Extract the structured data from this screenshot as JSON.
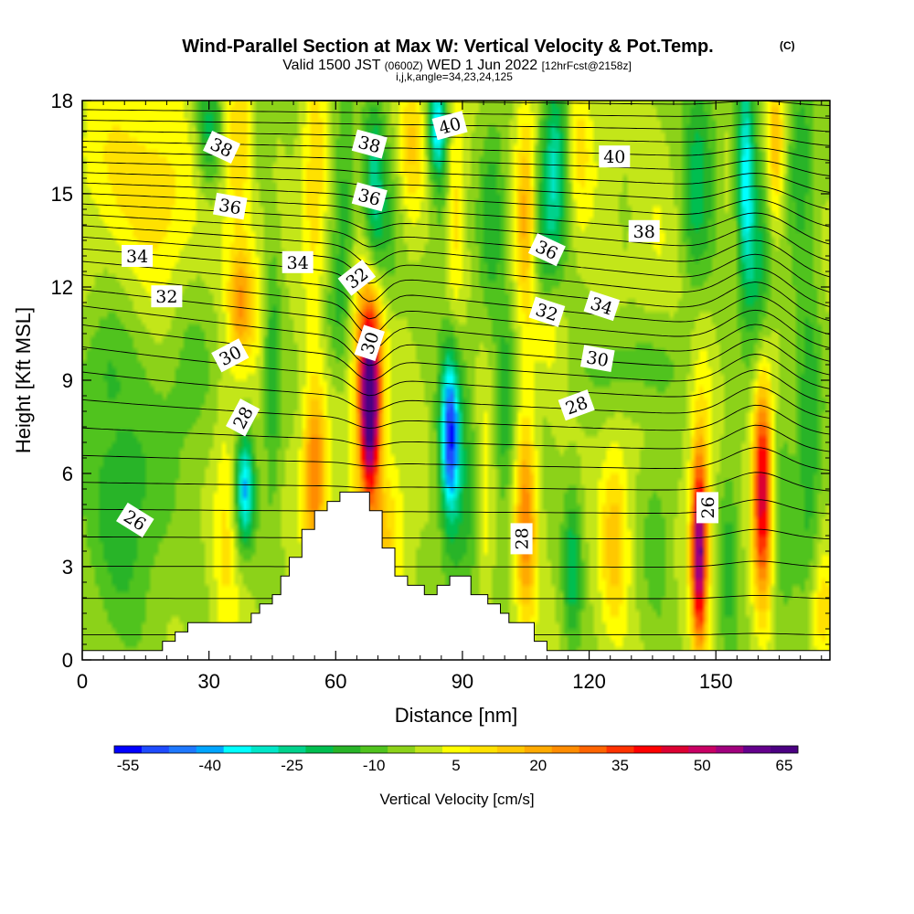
{
  "chart_data": {
    "type": "heatmap",
    "title": "Wind-Parallel Section at Max W: Vertical Velocity & Pot.Temp.",
    "title_mark": "(C)",
    "subtitle_valid": "Valid 1500 JST",
    "subtitle_utc": "(0600Z)",
    "subtitle_date": "WED 1 Jun 2022",
    "subtitle_fcst": "[12hrFcst@2158z]",
    "subtitle_index": "i,j,k,angle=34,23,24,125",
    "xlabel": "Distance [nm]",
    "ylabel": "Height [Kft MSL]",
    "xlim": [
      0,
      177
    ],
    "ylim": [
      0,
      18
    ],
    "xticks": [
      "0",
      "30",
      "60",
      "90",
      "120",
      "150"
    ],
    "xtick_values": [
      0,
      30,
      60,
      90,
      120,
      150
    ],
    "yticks": [
      "0",
      "3",
      "6",
      "9",
      "12",
      "15",
      "18"
    ],
    "ytick_values": [
      0,
      3,
      6,
      9,
      12,
      15,
      18
    ],
    "colorbar": {
      "label": "Vertical Velocity [cm/s]",
      "tick_labels": [
        "-55",
        "-40",
        "-25",
        "-10",
        "5",
        "20",
        "35",
        "50",
        "65"
      ],
      "tick_values": [
        -55,
        -40,
        -25,
        -10,
        5,
        20,
        35,
        50,
        65
      ],
      "min": -55,
      "max": 70,
      "step": 5,
      "colors": [
        "#0000ff",
        "#1e4bff",
        "#1e78ff",
        "#00a5ff",
        "#00ffff",
        "#00e6c8",
        "#00d28c",
        "#00be50",
        "#28b428",
        "#50c31e",
        "#8cd219",
        "#c3e619",
        "#ffff00",
        "#ffe100",
        "#ffc800",
        "#ffaa00",
        "#ff8c00",
        "#ff6400",
        "#ff3200",
        "#ff0000",
        "#dc0032",
        "#c80064",
        "#a0007d",
        "#64008c",
        "#4b0082"
      ]
    },
    "w_field": {
      "units": "cm/s",
      "background": 0,
      "cells": [
        {
          "x": 68,
          "z": 8.0,
          "sx": 2.3,
          "sz": 2.4,
          "w": 70
        },
        {
          "x": 68,
          "z": 10.5,
          "sx": 4,
          "sz": 2.5,
          "w": 30
        },
        {
          "x": 70,
          "z": 4,
          "sx": 6,
          "sz": 3,
          "w": 18
        },
        {
          "x": 55,
          "z": 6,
          "sx": 2.8,
          "sz": 2.8,
          "w": 32
        },
        {
          "x": 45,
          "z": 9,
          "sx": 2,
          "sz": 4,
          "w": -15
        },
        {
          "x": 38.5,
          "z": 5.5,
          "sx": 2.2,
          "sz": 1.8,
          "w": -35
        },
        {
          "x": 34,
          "z": 4,
          "sx": 3,
          "sz": 5,
          "w": 10
        },
        {
          "x": 87,
          "z": 7.3,
          "sx": 2.2,
          "sz": 2.6,
          "w": -45
        },
        {
          "x": 90,
          "z": 5,
          "sx": 5,
          "sz": 5,
          "w": -12
        },
        {
          "x": 95,
          "z": 5,
          "sx": 2.3,
          "sz": 4,
          "w": 12
        },
        {
          "x": 100,
          "z": 8,
          "sx": 2.3,
          "sz": 3,
          "w": -15
        },
        {
          "x": 105,
          "z": 4.5,
          "sx": 2.5,
          "sz": 3.5,
          "w": 28
        },
        {
          "x": 116,
          "z": 3.0,
          "sx": 2.2,
          "sz": 2.5,
          "w": -18
        },
        {
          "x": 126,
          "z": 4,
          "sx": 3.5,
          "sz": 3,
          "w": 18
        },
        {
          "x": 136,
          "z": 4,
          "sx": 3.5,
          "sz": 2.8,
          "w": -8
        },
        {
          "x": 146,
          "z": 3.5,
          "sx": 1.7,
          "sz": 2.8,
          "w": 55
        },
        {
          "x": 146.5,
          "z": 6,
          "sx": 3,
          "sz": 6,
          "w": 12
        },
        {
          "x": 153,
          "z": 3.2,
          "sx": 2.5,
          "sz": 3.5,
          "w": -12
        },
        {
          "x": 161,
          "z": 5.5,
          "sx": 2.2,
          "sz": 3.5,
          "w": 50
        },
        {
          "x": 166,
          "z": 4.5,
          "sx": 2.5,
          "sz": 4,
          "w": -8
        },
        {
          "x": 172,
          "z": 7,
          "sx": 3,
          "sz": 5,
          "w": -15
        },
        {
          "x": 175,
          "z": 1.5,
          "sx": 3,
          "sz": 2,
          "w": 15
        },
        {
          "x": 25,
          "z": 9,
          "sx": 6,
          "sz": 3,
          "w": -8
        },
        {
          "x": 10,
          "z": 5,
          "sx": 9,
          "sz": 4,
          "w": -14
        },
        {
          "x": 5,
          "z": 9.5,
          "sx": 6,
          "sz": 2,
          "w": -8
        },
        {
          "x": 10,
          "z": 16,
          "sx": 14,
          "sz": 3,
          "w": 10
        },
        {
          "x": 20,
          "z": 14,
          "sx": 8,
          "sz": 3,
          "w": 8
        },
        {
          "x": 30,
          "z": 17,
          "sx": 3,
          "sz": 2,
          "w": -18
        },
        {
          "x": 37,
          "z": 16.5,
          "sx": 4,
          "sz": 3,
          "w": 15
        },
        {
          "x": 42,
          "z": 17,
          "sx": 2.5,
          "sz": 2,
          "w": -8
        },
        {
          "x": 55,
          "z": 15.5,
          "sx": 3,
          "sz": 4,
          "w": 15
        },
        {
          "x": 40,
          "z": 11.5,
          "sx": 3.5,
          "sz": 2,
          "w": 12
        },
        {
          "x": 37,
          "z": 11.5,
          "sx": 2.5,
          "sz": 1.8,
          "w": 18
        },
        {
          "x": 62,
          "z": 15,
          "sx": 2.5,
          "sz": 4,
          "w": -12
        },
        {
          "x": 69,
          "z": 15,
          "sx": 2.5,
          "sz": 3,
          "w": -22
        },
        {
          "x": 72,
          "z": 13,
          "sx": 3,
          "sz": 3,
          "w": -10
        },
        {
          "x": 78,
          "z": 16.5,
          "sx": 3,
          "sz": 2.5,
          "w": 15
        },
        {
          "x": 84,
          "z": 17.2,
          "sx": 2,
          "sz": 1.5,
          "w": -32
        },
        {
          "x": 86,
          "z": 15,
          "sx": 3,
          "sz": 3,
          "w": -12
        },
        {
          "x": 88,
          "z": 15,
          "sx": 2.5,
          "sz": 4,
          "w": 18
        },
        {
          "x": 97,
          "z": 14.5,
          "sx": 3,
          "sz": 3,
          "w": -15
        },
        {
          "x": 105,
          "z": 14.5,
          "sx": 2.5,
          "sz": 3.5,
          "w": 22
        },
        {
          "x": 112,
          "z": 16,
          "sx": 3,
          "sz": 3,
          "w": -25
        },
        {
          "x": 109,
          "z": 13,
          "sx": 3,
          "sz": 3,
          "w": -10
        },
        {
          "x": 118,
          "z": 16.5,
          "sx": 3,
          "sz": 2.5,
          "w": 12
        },
        {
          "x": 124,
          "z": 16,
          "sx": 3,
          "sz": 3,
          "w": 5
        },
        {
          "x": 135,
          "z": 13,
          "sx": 5,
          "sz": 3,
          "w": 5
        },
        {
          "x": 145,
          "z": 15,
          "sx": 3,
          "sz": 4,
          "w": -15
        },
        {
          "x": 148,
          "z": 16,
          "sx": 3,
          "sz": 4,
          "w": -8
        },
        {
          "x": 157,
          "z": 15.5,
          "sx": 2,
          "sz": 3.5,
          "w": -32
        },
        {
          "x": 160,
          "z": 12.5,
          "sx": 3,
          "sz": 3,
          "w": -18
        },
        {
          "x": 164,
          "z": 16.5,
          "sx": 2,
          "sz": 2.5,
          "w": 20
        },
        {
          "x": 170,
          "z": 16,
          "sx": 3,
          "sz": 3,
          "w": -15
        },
        {
          "x": 130,
          "z": 9.5,
          "sx": 12,
          "sz": 1.5,
          "w": -8
        },
        {
          "x": 110,
          "z": 10.5,
          "sx": 4,
          "sz": 1.5,
          "w": 10
        },
        {
          "x": 60,
          "z": 11,
          "sx": 3,
          "sz": 2,
          "w": -8
        }
      ]
    },
    "theta_contours": {
      "units": "C",
      "labels": [
        {
          "text": "26",
          "x": 12.5,
          "z": 4.5,
          "angle": 32
        },
        {
          "text": "28",
          "x": 38,
          "z": 7.8,
          "angle": -62
        },
        {
          "text": "28",
          "x": 104,
          "z": 3.9,
          "angle": -90
        },
        {
          "text": "26",
          "x": 148,
          "z": 4.9,
          "angle": -90
        },
        {
          "text": "28",
          "x": 117,
          "z": 8.2,
          "angle": -20
        },
        {
          "text": "30",
          "x": 35,
          "z": 9.8,
          "angle": -28
        },
        {
          "text": "30",
          "x": 68,
          "z": 10.2,
          "angle": -72
        },
        {
          "text": "30",
          "x": 122,
          "z": 9.7,
          "angle": 10
        },
        {
          "text": "32",
          "x": 20,
          "z": 11.7,
          "angle": 0
        },
        {
          "text": "32",
          "x": 65,
          "z": 12.3,
          "angle": -38
        },
        {
          "text": "32",
          "x": 110,
          "z": 11.2,
          "angle": 18
        },
        {
          "text": "34",
          "x": 13,
          "z": 13.0,
          "angle": 0
        },
        {
          "text": "34",
          "x": 51,
          "z": 12.8,
          "angle": 0
        },
        {
          "text": "34",
          "x": 123,
          "z": 11.4,
          "angle": 18
        },
        {
          "text": "36",
          "x": 35,
          "z": 14.6,
          "angle": 10
        },
        {
          "text": "36",
          "x": 68,
          "z": 14.9,
          "angle": 15
        },
        {
          "text": "36",
          "x": 110,
          "z": 13.2,
          "angle": 25
        },
        {
          "text": "38",
          "x": 33,
          "z": 16.5,
          "angle": 25
        },
        {
          "text": "38",
          "x": 68,
          "z": 16.6,
          "angle": 15
        },
        {
          "text": "38",
          "x": 133,
          "z": 13.8,
          "angle": 0
        },
        {
          "text": "40",
          "x": 87,
          "z": 17.2,
          "angle": -15
        },
        {
          "text": "40",
          "x": 126,
          "z": 16.2,
          "angle": 0
        }
      ]
    },
    "terrain_profile": [
      [
        0,
        0.3
      ],
      [
        19,
        0.3
      ],
      [
        19,
        0.6
      ],
      [
        22,
        0.6
      ],
      [
        22,
        0.9
      ],
      [
        25,
        0.9
      ],
      [
        25,
        1.2
      ],
      [
        40,
        1.2
      ],
      [
        40,
        1.5
      ],
      [
        42,
        1.5
      ],
      [
        42,
        1.8
      ],
      [
        45,
        1.8
      ],
      [
        45,
        2.1
      ],
      [
        47,
        2.1
      ],
      [
        47,
        2.7
      ],
      [
        49,
        2.7
      ],
      [
        49,
        3.3
      ],
      [
        52,
        3.3
      ],
      [
        52,
        4.2
      ],
      [
        55,
        4.2
      ],
      [
        55,
        4.8
      ],
      [
        58,
        4.8
      ],
      [
        58,
        5.1
      ],
      [
        61,
        5.1
      ],
      [
        61,
        5.4
      ],
      [
        68,
        5.4
      ],
      [
        68,
        4.8
      ],
      [
        71,
        4.8
      ],
      [
        71,
        3.6
      ],
      [
        74,
        3.6
      ],
      [
        74,
        2.7
      ],
      [
        77,
        2.7
      ],
      [
        77,
        2.4
      ],
      [
        81,
        2.4
      ],
      [
        81,
        2.1
      ],
      [
        84,
        2.1
      ],
      [
        84,
        2.4
      ],
      [
        87,
        2.4
      ],
      [
        87,
        2.7
      ],
      [
        92,
        2.7
      ],
      [
        92,
        2.1
      ],
      [
        96,
        2.1
      ],
      [
        96,
        1.8
      ],
      [
        99,
        1.8
      ],
      [
        99,
        1.5
      ],
      [
        101,
        1.5
      ],
      [
        101,
        1.2
      ],
      [
        107,
        1.2
      ],
      [
        107,
        0.6
      ],
      [
        110,
        0.6
      ],
      [
        110,
        0.3
      ],
      [
        177,
        0.3
      ]
    ]
  }
}
